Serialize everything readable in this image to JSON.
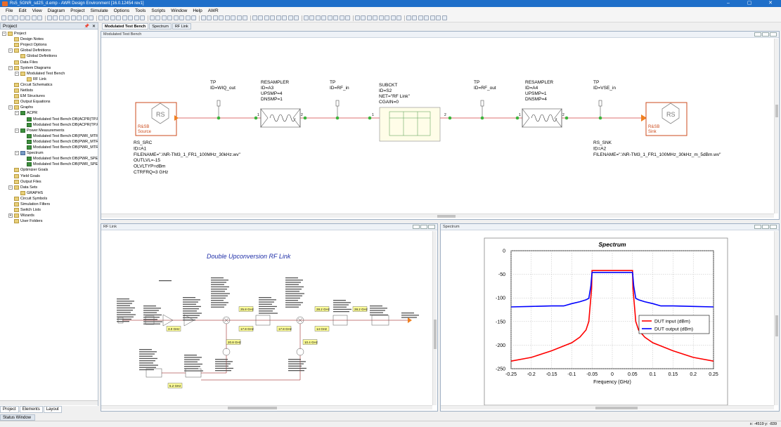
{
  "window": {
    "title": "Rs5_5GNR_sd2S_d.emp - AWR Design Environment [16.0.12454 rev1]",
    "minimize": "–",
    "maximize": "▢",
    "close": "✕"
  },
  "menu": [
    "File",
    "Edit",
    "View",
    "Diagram",
    "Project",
    "Simulate",
    "Options",
    "Tools",
    "Scripts",
    "Window",
    "Help",
    "AWR"
  ],
  "project_pane": {
    "title": "Project",
    "tree": [
      {
        "label": "Project",
        "indent": 0,
        "exp": "−",
        "icon": "folder"
      },
      {
        "label": "Design Notes",
        "indent": 1,
        "exp": "",
        "icon": "folder"
      },
      {
        "label": "Project Options",
        "indent": 1,
        "exp": "",
        "icon": "folder"
      },
      {
        "label": "Global Definitions",
        "indent": 1,
        "exp": "−",
        "icon": "folder"
      },
      {
        "label": "Global Definitions",
        "indent": 2,
        "exp": "",
        "icon": "folder"
      },
      {
        "label": "Data Files",
        "indent": 1,
        "exp": "",
        "icon": "folder"
      },
      {
        "label": "System Diagrams",
        "indent": 1,
        "exp": "−",
        "icon": "folder"
      },
      {
        "label": "Modulated Test Bench",
        "indent": 2,
        "exp": "−",
        "icon": "folder"
      },
      {
        "label": "RF Link",
        "indent": 3,
        "exp": "",
        "icon": "folder"
      },
      {
        "label": "Circuit Schematics",
        "indent": 1,
        "exp": "",
        "icon": "folder"
      },
      {
        "label": "Netlists",
        "indent": 1,
        "exp": "",
        "icon": "folder"
      },
      {
        "label": "EM Structures",
        "indent": 1,
        "exp": "",
        "icon": "folder"
      },
      {
        "label": "Output Equations",
        "indent": 1,
        "exp": "",
        "icon": "folder"
      },
      {
        "label": "Graphs",
        "indent": 1,
        "exp": "−",
        "icon": "folder"
      },
      {
        "label": "ACPR",
        "indent": 2,
        "exp": "−",
        "icon": "graph"
      },
      {
        "label": "Modulated Test Bench:DB(ACPR(TP.RF_",
        "indent": 3,
        "exp": "",
        "icon": "graph"
      },
      {
        "label": "Modulated Test Bench:DB(ACPR(TP.RF_",
        "indent": 3,
        "exp": "",
        "icon": "graph"
      },
      {
        "label": "Power Measurements",
        "indent": 2,
        "exp": "−",
        "icon": "graph"
      },
      {
        "label": "Modulated Test Bench:DB(PWR_MTR(T",
        "indent": 3,
        "exp": "",
        "icon": "graph"
      },
      {
        "label": "Modulated Test Bench:DB(PWR_MTR(T",
        "indent": 3,
        "exp": "",
        "icon": "graph"
      },
      {
        "label": "Modulated Test Bench:DB(PWR_MTR(T",
        "indent": 3,
        "exp": "",
        "icon": "graph"
      },
      {
        "label": "Spectrum",
        "indent": 2,
        "exp": "−",
        "icon": "spectrum"
      },
      {
        "label": "Modulated Test Bench:DB(PWR_SPEC(T",
        "indent": 3,
        "exp": "",
        "icon": "graph"
      },
      {
        "label": "Modulated Test Bench:DB(PWR_SPEC(T",
        "indent": 3,
        "exp": "",
        "icon": "graph"
      },
      {
        "label": "Optimizer Goals",
        "indent": 1,
        "exp": "",
        "icon": "folder"
      },
      {
        "label": "Yield Goals",
        "indent": 1,
        "exp": "",
        "icon": "folder"
      },
      {
        "label": "Output Files",
        "indent": 1,
        "exp": "",
        "icon": "folder"
      },
      {
        "label": "Data Sets",
        "indent": 1,
        "exp": "−",
        "icon": "folder"
      },
      {
        "label": "GRAPHS",
        "indent": 2,
        "exp": "",
        "icon": "folder"
      },
      {
        "label": "Circuit Symbols",
        "indent": 1,
        "exp": "",
        "icon": "folder"
      },
      {
        "label": "Simulation Filters",
        "indent": 1,
        "exp": "",
        "icon": "folder"
      },
      {
        "label": "Switch Lists",
        "indent": 1,
        "exp": "",
        "icon": "folder"
      },
      {
        "label": "Wizards",
        "indent": 1,
        "exp": "+",
        "icon": "folder"
      },
      {
        "label": "User Folders",
        "indent": 1,
        "exp": "",
        "icon": "folder"
      }
    ],
    "tabs": [
      "Project",
      "Elements",
      "Layout"
    ]
  },
  "doc_tabs": [
    "Modulated Test Bench",
    "Spectrum",
    "RF Link"
  ],
  "test_bench": {
    "title": "Modulated Test Bench",
    "source_label": "R&SB Source",
    "sink_label": "R&SB Sink",
    "rs_logo": "RS",
    "src_params": [
      "RS_SRC",
      "ID=A1",
      "FILENAME=\".\\NR-TM3_1_FR1_100MHz_30kHz.wv\"",
      "OUTLVL=-15",
      "OLVLTYP=dBm",
      "CTRFRQ=3 GHz"
    ],
    "snk_params": [
      "RS_SNK",
      "ID=A2",
      "FILENAME=\".\\NR-TM3_1_FR1_100MHz_30kHz_m_5dBm.wv\""
    ],
    "tp1": [
      "TP",
      "ID=WIQ_out"
    ],
    "tp2": [
      "TP",
      "ID=RF_in"
    ],
    "tp3": [
      "TP",
      "ID=RF_out"
    ],
    "tp4": [
      "TP",
      "ID=VSE_in"
    ],
    "resampler1": [
      "RESAMPLER",
      "ID=A3",
      "UPSMP=4",
      "DNSMP=1"
    ],
    "resampler2": [
      "RESAMPLER",
      "ID=A4",
      "UPSMP=1",
      "DNSMP=4"
    ],
    "subckt": [
      "SUBCKT",
      "ID=S2",
      "NET=\"RF Link\"",
      "CGAIN=0"
    ],
    "pins": [
      "1",
      "2",
      "1",
      "2",
      "1",
      "2",
      "1",
      "2"
    ]
  },
  "rf_link": {
    "title": "RF Link",
    "heading": "Double Upconversion RF Link",
    "freq_labels": [
      "3.0 GHz",
      "25.8 GHz",
      "17.8 GHz",
      "17.8 GHz",
      "14 GHz",
      "28.2 GHz",
      "28.2 GHz",
      "20.8 GHz",
      "10.4 GHz",
      "5.2 GHz"
    ]
  },
  "spectrum": {
    "title": "Spectrum"
  },
  "status": {
    "tab": "Status Window",
    "coords": "x: -4519  y: -839"
  },
  "chart_data": {
    "type": "line",
    "title": "Spectrum",
    "xlabel": "Frequency (GHz)",
    "ylabel": "",
    "xlim": [
      -0.25,
      0.25
    ],
    "ylim": [
      -250,
      0
    ],
    "xticks": [
      -0.25,
      -0.2,
      -0.15,
      -0.1,
      -0.05,
      0,
      0.05,
      0.1,
      0.15,
      0.2,
      0.25
    ],
    "yticks": [
      0,
      -50,
      -100,
      -150,
      -200,
      -250
    ],
    "grid": true,
    "legend_position": "right",
    "series": [
      {
        "name": "DUT input (dBm)",
        "color": "#ff0000",
        "x": [
          -0.25,
          -0.2,
          -0.15,
          -0.1,
          -0.08,
          -0.065,
          -0.058,
          -0.055,
          -0.051,
          -0.05,
          0.05,
          0.051,
          0.055,
          0.058,
          0.065,
          0.08,
          0.1,
          0.15,
          0.2,
          0.25
        ],
        "y": [
          -234,
          -226,
          -212,
          -195,
          -183,
          -168,
          -150,
          -120,
          -80,
          -42,
          -42,
          -80,
          -120,
          -150,
          -168,
          -183,
          -195,
          -212,
          -226,
          -234
        ]
      },
      {
        "name": "DUT output (dBm)",
        "color": "#0000ff",
        "x": [
          -0.25,
          -0.2,
          -0.15,
          -0.12,
          -0.1,
          -0.08,
          -0.065,
          -0.058,
          -0.053,
          -0.05,
          0.05,
          0.053,
          0.058,
          0.065,
          0.08,
          0.1,
          0.12,
          0.15,
          0.2,
          0.25
        ],
        "y": [
          -119,
          -118,
          -117,
          -117,
          -112,
          -108,
          -104,
          -101,
          -75,
          -46,
          -46,
          -75,
          -101,
          -104,
          -108,
          -112,
          -117,
          -117,
          -118,
          -119
        ]
      }
    ]
  }
}
